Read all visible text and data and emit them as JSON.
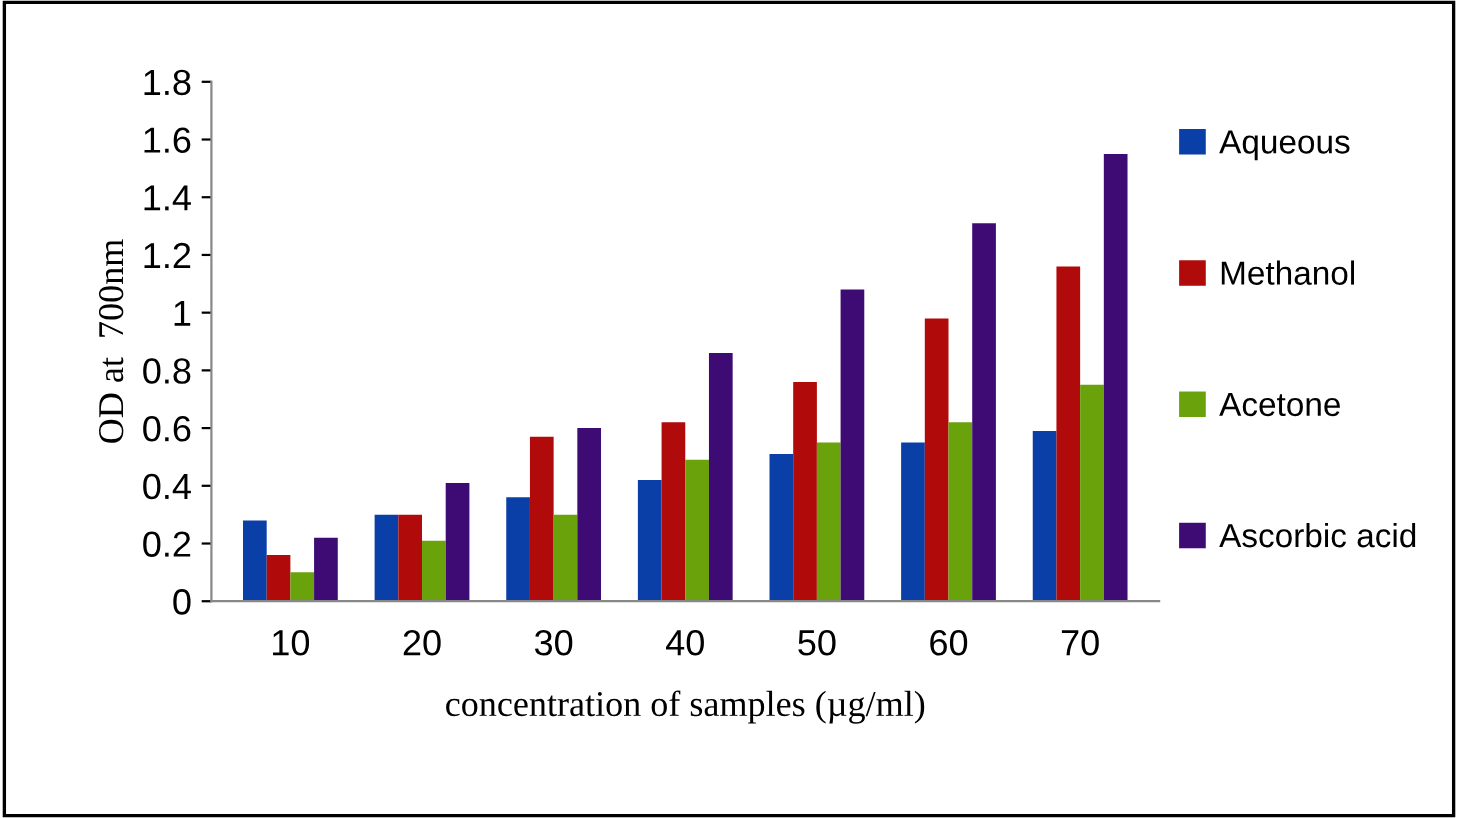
{
  "chart_data": {
    "type": "bar",
    "xlabel": "concentration of samples (µg/ml)",
    "ylabel": "OD at  700nm",
    "categories": [
      "10",
      "20",
      "30",
      "40",
      "50",
      "60",
      "70"
    ],
    "series": [
      {
        "name": "Aqueous",
        "color": "#0a3fa8",
        "values": [
          0.28,
          0.3,
          0.36,
          0.42,
          0.51,
          0.55,
          0.59
        ]
      },
      {
        "name": "Methanol",
        "color": "#b00a0a",
        "values": [
          0.16,
          0.3,
          0.57,
          0.62,
          0.76,
          0.98,
          1.16
        ]
      },
      {
        "name": "Acetone",
        "color": "#6aa20c",
        "values": [
          0.1,
          0.21,
          0.3,
          0.49,
          0.55,
          0.62,
          0.75
        ]
      },
      {
        "name": "Ascorbic acid",
        "color": "#3e0a74",
        "values": [
          0.22,
          0.41,
          0.6,
          0.86,
          1.08,
          1.31,
          1.55
        ]
      }
    ],
    "ylim": [
      0,
      1.8
    ],
    "yticks": [
      0,
      0.2,
      0.4,
      0.6,
      0.8,
      1,
      1.2,
      1.4,
      1.6,
      1.8
    ],
    "grid": false,
    "legend": "right"
  }
}
